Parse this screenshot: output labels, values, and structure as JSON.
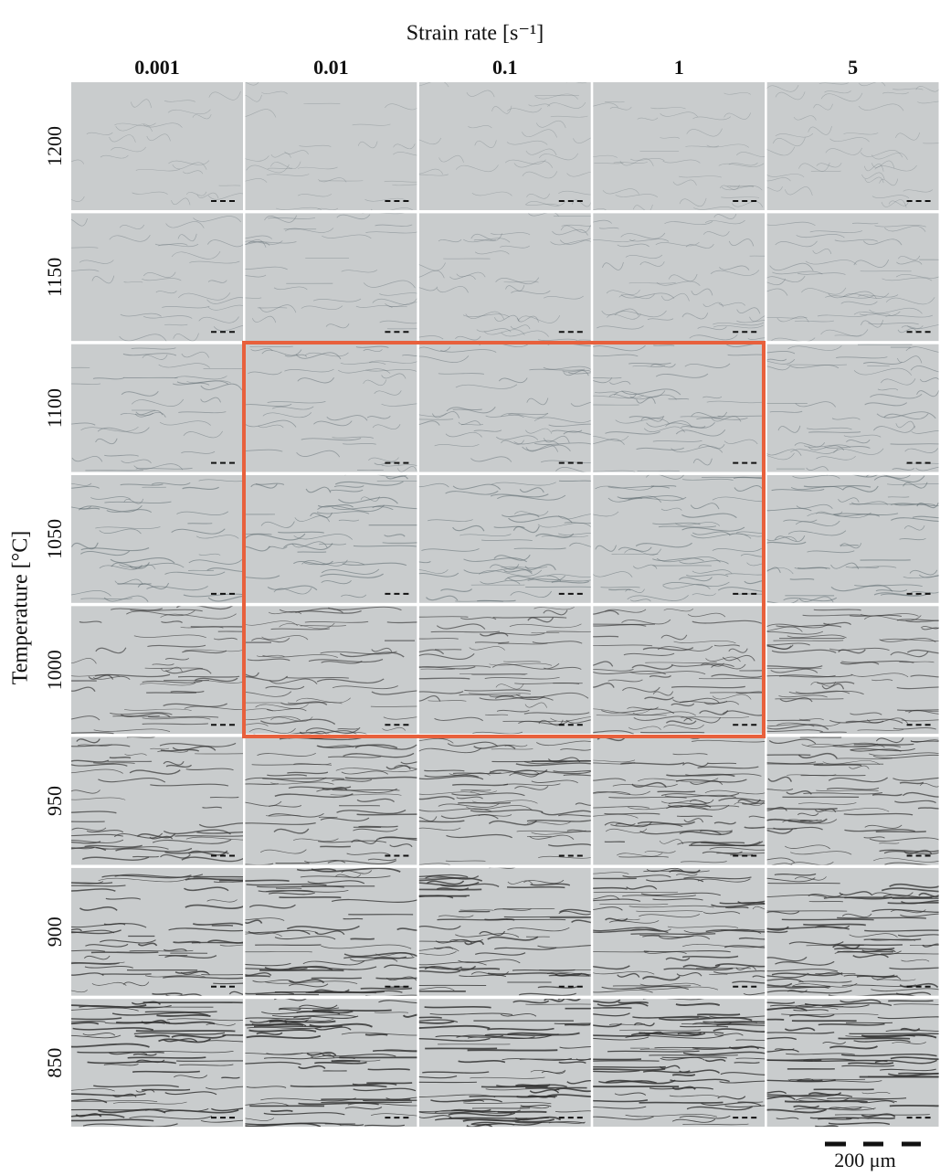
{
  "title": "Strain rate [s⁻¹]",
  "columns": [
    "0.001",
    "0.01",
    "0.1",
    "1",
    "5"
  ],
  "y_label": "Temperature [°C]",
  "rows": [
    "1200",
    "1150",
    "1100",
    "1050",
    "1000",
    "950",
    "900",
    "850"
  ],
  "scale_bar": "200 μm"
}
